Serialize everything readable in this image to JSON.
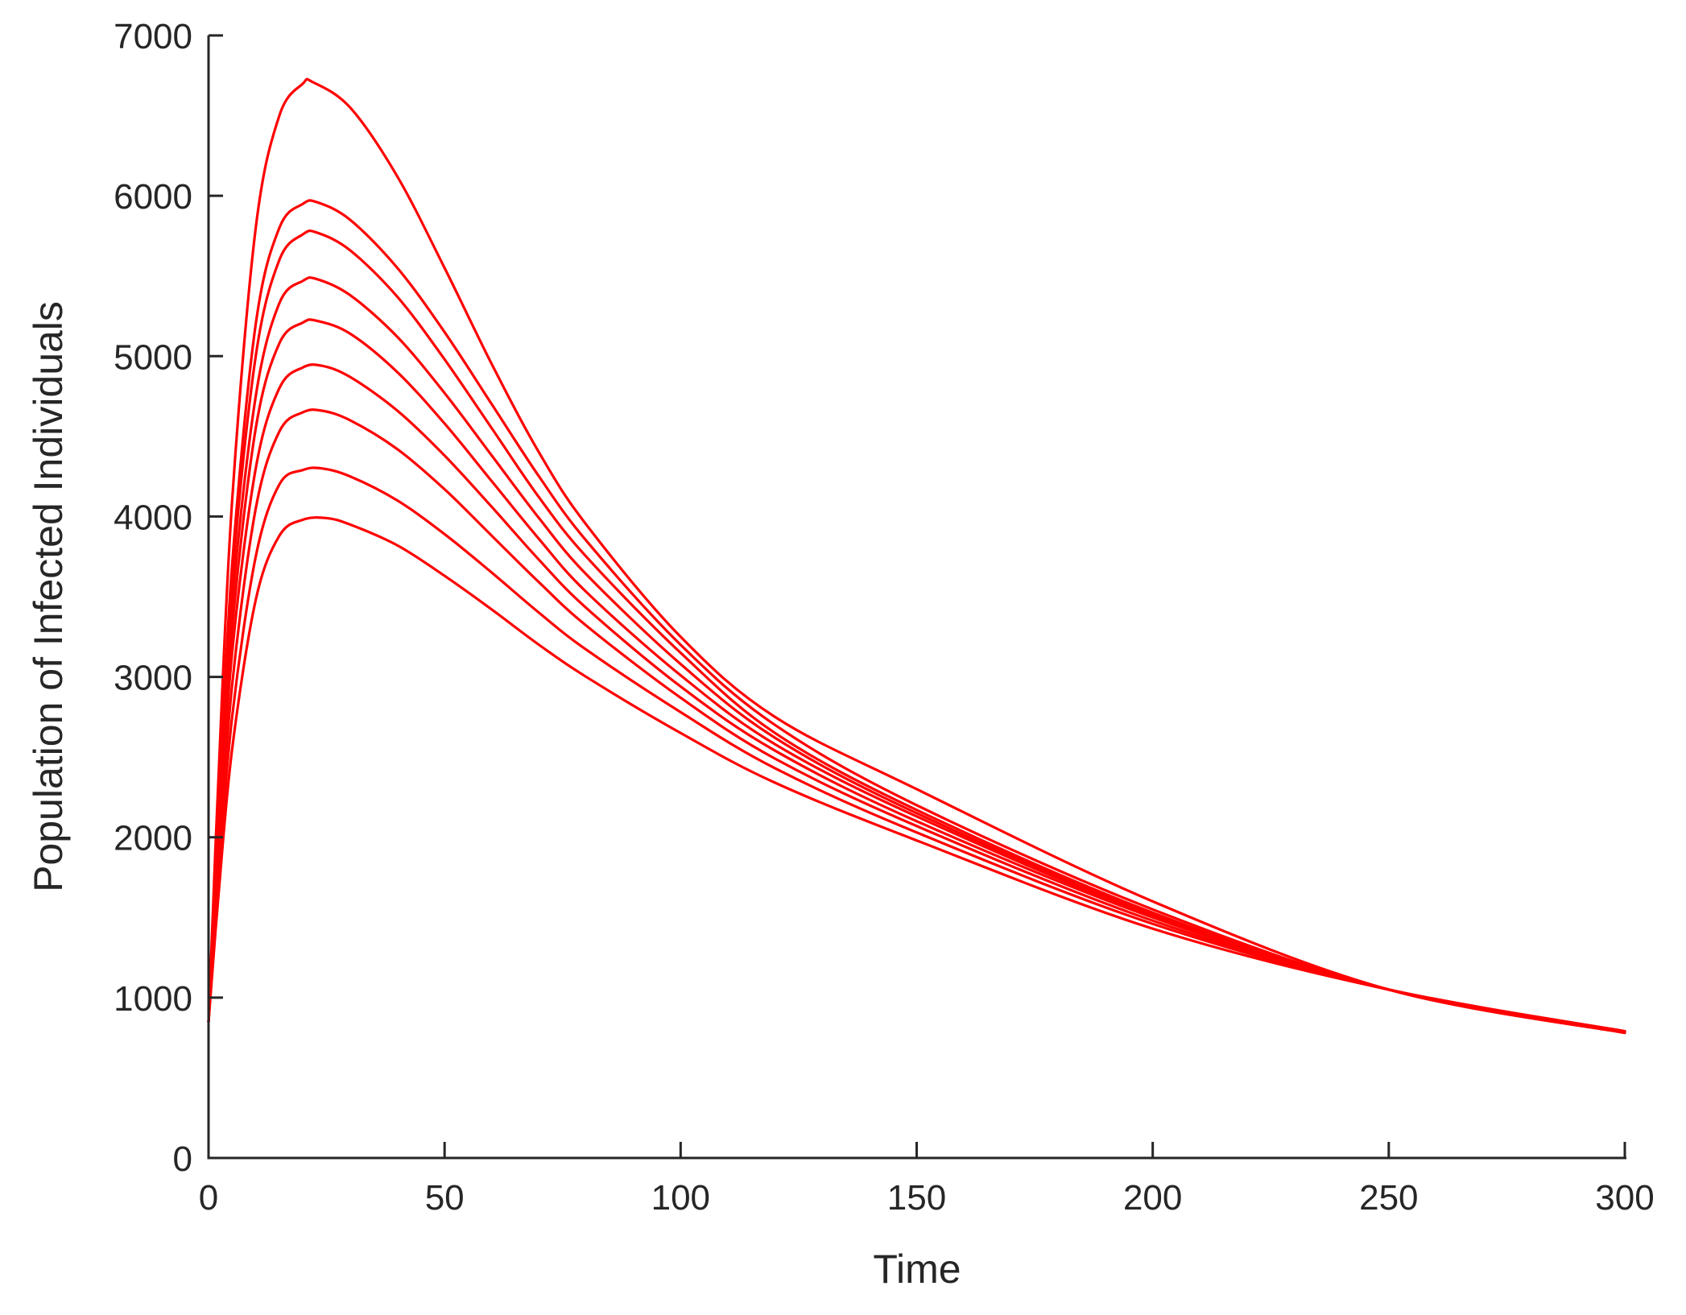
{
  "colors": {
    "series": "#ff0000",
    "axis": "#262626",
    "background": "#ffffff"
  },
  "chart_data": {
    "type": "line",
    "title": "",
    "xlabel": "Time",
    "ylabel": "Population of Infected Individuals",
    "xlim": [
      0,
      300
    ],
    "ylim": [
      0,
      7000
    ],
    "xticks": [
      0,
      50,
      100,
      150,
      200,
      250,
      300
    ],
    "yticks": [
      0,
      1000,
      2000,
      3000,
      4000,
      5000,
      6000,
      7000
    ],
    "grid": false,
    "legend": "none",
    "series": [
      {
        "x": [
          0,
          2,
          5,
          10,
          15,
          20,
          22,
          30,
          40,
          50,
          60,
          70,
          80,
          100,
          120,
          150,
          200,
          250,
          300
        ],
        "y": [
          850,
          2300,
          4100,
          5800,
          6500,
          6700,
          6710,
          6550,
          6120,
          5550,
          4950,
          4400,
          3950,
          3250,
          2750,
          2300,
          1600,
          1050,
          780
        ]
      },
      {
        "x": [
          0,
          2,
          5,
          10,
          15,
          20,
          23,
          30,
          40,
          50,
          60,
          70,
          80,
          100,
          120,
          150,
          200,
          250,
          300
        ],
        "y": [
          850,
          2100,
          3700,
          5200,
          5800,
          5950,
          5960,
          5850,
          5550,
          5150,
          4700,
          4250,
          3850,
          3200,
          2700,
          2200,
          1550,
          1050,
          790
        ]
      },
      {
        "x": [
          0,
          2,
          5,
          10,
          15,
          20,
          23,
          30,
          40,
          50,
          60,
          70,
          80,
          100,
          120,
          150,
          200,
          250,
          300
        ],
        "y": [
          850,
          2050,
          3600,
          5000,
          5600,
          5760,
          5770,
          5660,
          5370,
          4980,
          4550,
          4120,
          3750,
          3150,
          2650,
          2170,
          1530,
          1050,
          790
        ]
      },
      {
        "x": [
          0,
          2,
          5,
          10,
          15,
          20,
          23,
          30,
          40,
          50,
          60,
          70,
          80,
          100,
          120,
          150,
          200,
          250,
          300
        ],
        "y": [
          850,
          2000,
          3450,
          4750,
          5330,
          5470,
          5480,
          5380,
          5120,
          4770,
          4380,
          3990,
          3640,
          3080,
          2620,
          2150,
          1520,
          1050,
          790
        ]
      },
      {
        "x": [
          0,
          2,
          5,
          10,
          15,
          20,
          23,
          30,
          40,
          50,
          60,
          70,
          80,
          100,
          120,
          150,
          200,
          250,
          300
        ],
        "y": [
          850,
          1950,
          3300,
          4550,
          5080,
          5210,
          5220,
          5140,
          4900,
          4580,
          4220,
          3860,
          3530,
          3010,
          2580,
          2130,
          1510,
          1050,
          790
        ]
      },
      {
        "x": [
          0,
          2,
          5,
          10,
          15,
          20,
          24,
          30,
          40,
          50,
          60,
          70,
          80,
          100,
          120,
          150,
          200,
          250,
          300
        ],
        "y": [
          850,
          1900,
          3150,
          4300,
          4800,
          4930,
          4940,
          4870,
          4660,
          4380,
          4060,
          3730,
          3430,
          2940,
          2540,
          2100,
          1500,
          1050,
          790
        ]
      },
      {
        "x": [
          0,
          2,
          5,
          10,
          15,
          20,
          24,
          30,
          40,
          50,
          60,
          70,
          80,
          100,
          120,
          150,
          200,
          250,
          300
        ],
        "y": [
          850,
          1800,
          2950,
          4050,
          4530,
          4650,
          4660,
          4600,
          4420,
          4170,
          3880,
          3590,
          3320,
          2870,
          2490,
          2070,
          1480,
          1050,
          790
        ]
      },
      {
        "x": [
          0,
          2,
          5,
          10,
          15,
          20,
          24,
          30,
          40,
          50,
          60,
          70,
          80,
          100,
          120,
          150,
          200,
          250,
          300
        ],
        "y": [
          850,
          1700,
          2750,
          3750,
          4200,
          4290,
          4300,
          4250,
          4100,
          3890,
          3650,
          3400,
          3170,
          2780,
          2430,
          2030,
          1460,
          1050,
          790
        ]
      },
      {
        "x": [
          0,
          2,
          5,
          10,
          15,
          20,
          25,
          30,
          40,
          50,
          60,
          70,
          80,
          100,
          120,
          150,
          200,
          250,
          300
        ],
        "y": [
          850,
          1600,
          2550,
          3480,
          3880,
          3980,
          3990,
          3950,
          3820,
          3630,
          3420,
          3200,
          3000,
          2650,
          2340,
          1980,
          1430,
          1050,
          790
        ]
      }
    ]
  }
}
